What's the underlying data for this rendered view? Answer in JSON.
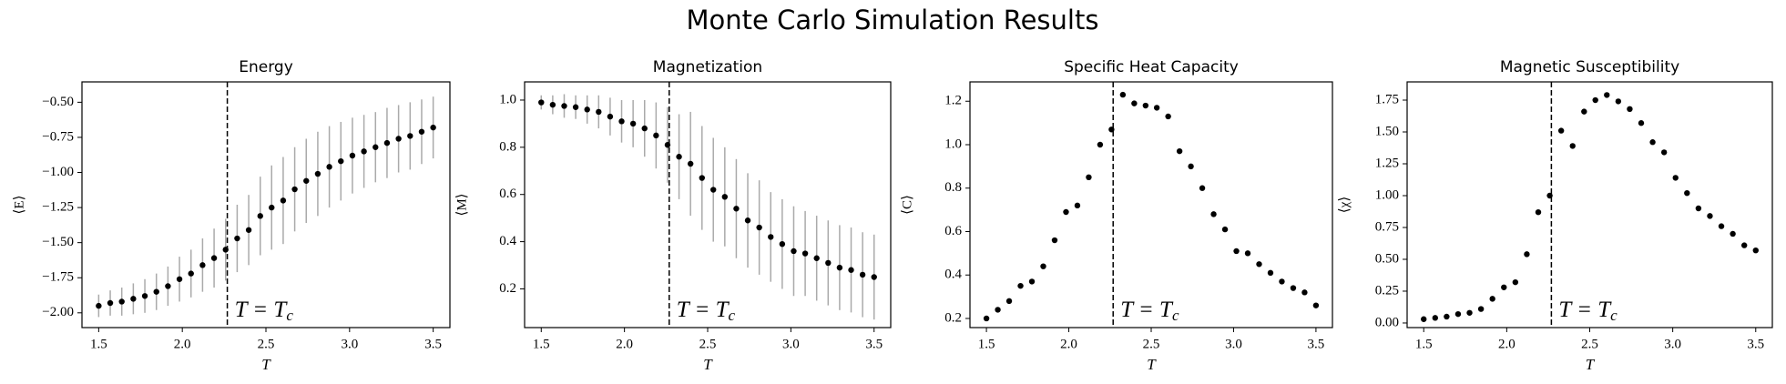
{
  "title": "Monte Carlo Simulation Results",
  "chart_data": [
    {
      "type": "errorbar",
      "title": "Energy",
      "xlabel": "T",
      "ylabel": "⟨E⟩",
      "x": [
        1.5,
        1.569,
        1.638,
        1.707,
        1.776,
        1.845,
        1.914,
        1.983,
        2.052,
        2.121,
        2.19,
        2.259,
        2.328,
        2.397,
        2.466,
        2.534,
        2.603,
        2.672,
        2.741,
        2.81,
        2.879,
        2.948,
        3.017,
        3.086,
        3.155,
        3.224,
        3.293,
        3.362,
        3.431,
        3.5
      ],
      "values": [
        -1.95,
        -1.93,
        -1.92,
        -1.9,
        -1.88,
        -1.85,
        -1.81,
        -1.76,
        -1.72,
        -1.66,
        -1.61,
        -1.55,
        -1.47,
        -1.41,
        -1.31,
        -1.25,
        -1.2,
        -1.12,
        -1.06,
        -1.01,
        -0.96,
        -0.92,
        -0.88,
        -0.85,
        -0.82,
        -0.79,
        -0.76,
        -0.74,
        -0.71,
        -0.68
      ],
      "errors": [
        0.08,
        0.09,
        0.1,
        0.11,
        0.12,
        0.13,
        0.14,
        0.16,
        0.17,
        0.19,
        0.21,
        0.22,
        0.24,
        0.25,
        0.28,
        0.3,
        0.31,
        0.3,
        0.3,
        0.3,
        0.29,
        0.28,
        0.27,
        0.26,
        0.25,
        0.25,
        0.24,
        0.24,
        0.23,
        0.22
      ],
      "color": "#000000",
      "error_color": "#aaaaaa",
      "vline": 2.269,
      "annotation": {
        "text": "T = T",
        "subscript": "c"
      },
      "xlim": [
        1.4,
        3.6
      ],
      "ylim": [
        -2.105,
        -0.355
      ],
      "xticks": [
        1.5,
        {
          "value": 2.0,
          "label": "2.0"
        },
        2.5,
        {
          "value": 3.0,
          "label": "3.0"
        },
        3.5
      ],
      "yticks": [
        {
          "value": -2.0,
          "label": "−2.00"
        },
        {
          "value": -1.75,
          "label": "−1.75"
        },
        {
          "value": -1.5,
          "label": "−1.50"
        },
        {
          "value": -1.25,
          "label": "−1.25"
        },
        {
          "value": -1.0,
          "label": "−1.00"
        },
        {
          "value": -0.75,
          "label": "−0.75"
        },
        {
          "value": -0.5,
          "label": "−0.50"
        }
      ]
    },
    {
      "type": "errorbar",
      "title": "Magnetization",
      "xlabel": "T",
      "ylabel": "⟨M⟩",
      "x": [
        1.5,
        1.569,
        1.638,
        1.707,
        1.776,
        1.845,
        1.914,
        1.983,
        2.052,
        2.121,
        2.19,
        2.259,
        2.328,
        2.397,
        2.466,
        2.534,
        2.603,
        2.672,
        2.741,
        2.81,
        2.879,
        2.948,
        3.017,
        3.086,
        3.155,
        3.224,
        3.293,
        3.362,
        3.431,
        3.5
      ],
      "values": [
        0.99,
        0.98,
        0.975,
        0.97,
        0.96,
        0.95,
        0.93,
        0.91,
        0.9,
        0.88,
        0.85,
        0.81,
        0.76,
        0.73,
        0.67,
        0.62,
        0.59,
        0.54,
        0.49,
        0.46,
        0.42,
        0.39,
        0.36,
        0.35,
        0.33,
        0.31,
        0.29,
        0.28,
        0.26,
        0.25
      ],
      "errors": [
        0.03,
        0.04,
        0.05,
        0.05,
        0.06,
        0.07,
        0.08,
        0.09,
        0.1,
        0.12,
        0.14,
        0.16,
        0.18,
        0.22,
        0.22,
        0.22,
        0.21,
        0.21,
        0.2,
        0.2,
        0.19,
        0.19,
        0.19,
        0.18,
        0.18,
        0.18,
        0.18,
        0.18,
        0.18,
        0.18
      ],
      "color": "#000000",
      "error_color": "#aaaaaa",
      "vline": 2.269,
      "annotation": {
        "text": "T = T",
        "subscript": "c"
      },
      "xlim": [
        1.4,
        3.6
      ],
      "ylim": [
        0.036,
        1.077
      ],
      "xticks": [
        1.5,
        {
          "value": 2.0,
          "label": "2.0"
        },
        2.5,
        {
          "value": 3.0,
          "label": "3.0"
        },
        3.5
      ],
      "yticks": [
        0.2,
        0.4,
        0.6,
        0.8,
        {
          "value": 1.0,
          "label": "1.0"
        }
      ]
    },
    {
      "type": "scatter",
      "title": "Specific Heat Capacity",
      "xlabel": "T",
      "ylabel": "⟨C⟩",
      "x": [
        1.5,
        1.569,
        1.638,
        1.707,
        1.776,
        1.845,
        1.914,
        1.983,
        2.052,
        2.121,
        2.19,
        2.259,
        2.328,
        2.397,
        2.466,
        2.534,
        2.603,
        2.672,
        2.741,
        2.81,
        2.879,
        2.948,
        3.017,
        3.086,
        3.155,
        3.224,
        3.293,
        3.362,
        3.431,
        3.5
      ],
      "values": [
        0.2,
        0.24,
        0.28,
        0.35,
        0.37,
        0.44,
        0.56,
        0.69,
        0.72,
        0.85,
        1.0,
        1.07,
        1.23,
        1.19,
        1.18,
        1.17,
        1.13,
        0.97,
        0.9,
        0.8,
        0.68,
        0.61,
        0.51,
        0.5,
        0.45,
        0.41,
        0.37,
        0.34,
        0.32,
        0.26
      ],
      "color": "#000000",
      "vline": 2.269,
      "annotation": {
        "text": "T = T",
        "subscript": "c"
      },
      "xlim": [
        1.4,
        3.6
      ],
      "ylim": [
        0.158,
        1.289
      ],
      "xticks": [
        1.5,
        {
          "value": 2.0,
          "label": "2.0"
        },
        2.5,
        {
          "value": 3.0,
          "label": "3.0"
        },
        3.5
      ],
      "yticks": [
        0.2,
        0.4,
        0.6,
        0.8,
        {
          "value": 1.0,
          "label": "1.0"
        },
        1.2
      ]
    },
    {
      "type": "scatter",
      "title": "Magnetic Susceptibility",
      "xlabel": "T",
      "ylabel": "⟨χ⟩",
      "x": [
        1.5,
        1.569,
        1.638,
        1.707,
        1.776,
        1.845,
        1.914,
        1.983,
        2.052,
        2.121,
        2.19,
        2.259,
        2.328,
        2.397,
        2.466,
        2.534,
        2.603,
        2.672,
        2.741,
        2.81,
        2.879,
        2.948,
        3.017,
        3.086,
        3.155,
        3.224,
        3.293,
        3.362,
        3.431,
        3.5
      ],
      "values": [
        0.03,
        0.04,
        0.05,
        0.07,
        0.08,
        0.11,
        0.19,
        0.28,
        0.32,
        0.54,
        0.87,
        1.0,
        1.51,
        1.39,
        1.66,
        1.75,
        1.79,
        1.74,
        1.68,
        1.57,
        1.42,
        1.34,
        1.14,
        1.02,
        0.9,
        0.84,
        0.76,
        0.7,
        0.61,
        0.57
      ],
      "color": "#000000",
      "vline": 2.269,
      "annotation": {
        "text": "T = T",
        "subscript": "c"
      },
      "xlim": [
        1.4,
        3.6
      ],
      "ylim": [
        -0.036,
        1.893
      ],
      "xticks": [
        1.5,
        {
          "value": 2.0,
          "label": "2.0"
        },
        2.5,
        {
          "value": 3.0,
          "label": "3.0"
        },
        3.5
      ],
      "yticks": [
        {
          "value": 0.0,
          "label": "0.00"
        },
        {
          "value": 0.25,
          "label": "0.25"
        },
        {
          "value": 0.5,
          "label": "0.50"
        },
        {
          "value": 0.75,
          "label": "0.75"
        },
        {
          "value": 1.0,
          "label": "1.00"
        },
        {
          "value": 1.25,
          "label": "1.25"
        },
        {
          "value": 1.5,
          "label": "1.50"
        },
        {
          "value": 1.75,
          "label": "1.75"
        }
      ]
    }
  ]
}
